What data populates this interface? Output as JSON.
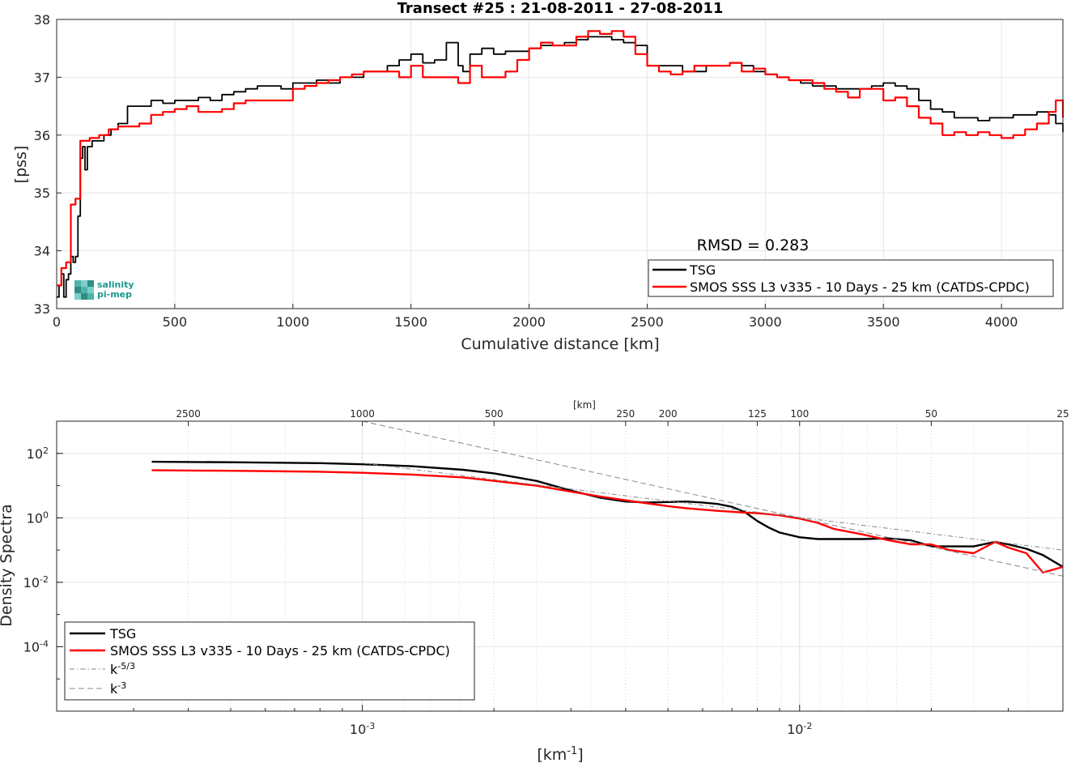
{
  "chart_data": [
    {
      "type": "line",
      "title": "Transect #25 : 21-08-2011 - 27-08-2011",
      "xlabel": "Cumulative distance [km]",
      "ylabel": "[pss]",
      "xlim": [
        0,
        4260
      ],
      "ylim": [
        33,
        38
      ],
      "xticks": [
        "0",
        "500",
        "1000",
        "1500",
        "2000",
        "2500",
        "3000",
        "3500",
        "4000"
      ],
      "yticks": [
        "33",
        "34",
        "35",
        "36",
        "37",
        "38"
      ],
      "grid": true,
      "annotation": "RMSD = 0.283",
      "legend_position": "bottom-right",
      "logo": "salinity pi-mep",
      "series": [
        {
          "name": "TSG",
          "color": "#000000",
          "x": [
            0,
            10,
            20,
            30,
            40,
            50,
            60,
            70,
            80,
            90,
            100,
            110,
            120,
            130,
            150,
            180,
            200,
            230,
            260,
            300,
            350,
            400,
            450,
            500,
            550,
            600,
            650,
            700,
            750,
            800,
            850,
            900,
            950,
            1000,
            1050,
            1100,
            1150,
            1200,
            1250,
            1300,
            1350,
            1400,
            1450,
            1500,
            1550,
            1600,
            1650,
            1700,
            1720,
            1750,
            1800,
            1850,
            1900,
            1950,
            2000,
            2050,
            2100,
            2150,
            2200,
            2250,
            2300,
            2350,
            2400,
            2450,
            2500,
            2550,
            2600,
            2650,
            2700,
            2750,
            2800,
            2850,
            2900,
            2950,
            3000,
            3050,
            3100,
            3150,
            3200,
            3250,
            3300,
            3350,
            3400,
            3450,
            3500,
            3550,
            3600,
            3650,
            3700,
            3750,
            3800,
            3850,
            3900,
            3950,
            4000,
            4050,
            4100,
            4150,
            4200,
            4230,
            4260
          ],
          "y": [
            33.2,
            33.4,
            33.6,
            33.2,
            33.5,
            33.6,
            33.9,
            33.8,
            33.9,
            34.6,
            35.6,
            35.8,
            35.4,
            35.8,
            35.9,
            35.9,
            36.0,
            36.1,
            36.2,
            36.5,
            36.5,
            36.6,
            36.55,
            36.6,
            36.6,
            36.65,
            36.6,
            36.7,
            36.75,
            36.8,
            36.85,
            36.85,
            36.8,
            36.9,
            36.9,
            36.95,
            36.9,
            37.0,
            37.0,
            37.1,
            37.1,
            37.2,
            37.3,
            37.4,
            37.25,
            37.3,
            37.6,
            37.2,
            37.1,
            37.4,
            37.5,
            37.4,
            37.45,
            37.45,
            37.5,
            37.55,
            37.55,
            37.6,
            37.65,
            37.7,
            37.7,
            37.65,
            37.6,
            37.55,
            37.2,
            37.2,
            37.2,
            37.1,
            37.1,
            37.2,
            37.2,
            37.25,
            37.2,
            37.1,
            37.05,
            37.0,
            36.95,
            36.9,
            36.85,
            36.85,
            36.8,
            36.8,
            36.8,
            36.85,
            36.9,
            36.85,
            36.8,
            36.6,
            36.45,
            36.4,
            36.3,
            36.3,
            36.25,
            36.3,
            36.3,
            36.35,
            36.35,
            36.4,
            36.35,
            36.2,
            36.05
          ]
        },
        {
          "name": "SMOS SSS L3 v335 - 10 Days - 25 km (CATDS-CPDC)",
          "color": "#ff0000",
          "x": [
            0,
            20,
            40,
            60,
            80,
            100,
            120,
            140,
            180,
            220,
            260,
            300,
            350,
            400,
            450,
            500,
            550,
            600,
            650,
            700,
            750,
            800,
            850,
            900,
            950,
            1000,
            1050,
            1100,
            1150,
            1200,
            1250,
            1300,
            1350,
            1400,
            1450,
            1500,
            1550,
            1600,
            1650,
            1700,
            1750,
            1800,
            1850,
            1900,
            1950,
            2000,
            2050,
            2100,
            2150,
            2200,
            2250,
            2300,
            2350,
            2400,
            2450,
            2500,
            2550,
            2600,
            2650,
            2700,
            2750,
            2800,
            2850,
            2900,
            2950,
            3000,
            3050,
            3100,
            3150,
            3200,
            3250,
            3300,
            3350,
            3400,
            3450,
            3500,
            3550,
            3600,
            3650,
            3700,
            3750,
            3800,
            3850,
            3900,
            3950,
            4000,
            4050,
            4100,
            4150,
            4200,
            4230,
            4260
          ],
          "y": [
            33.4,
            33.7,
            33.8,
            34.8,
            34.9,
            35.9,
            35.9,
            35.95,
            36.0,
            36.1,
            36.15,
            36.15,
            36.2,
            36.35,
            36.4,
            36.45,
            36.5,
            36.4,
            36.4,
            36.45,
            36.55,
            36.6,
            36.6,
            36.6,
            36.6,
            36.8,
            36.85,
            36.9,
            36.95,
            37.0,
            37.05,
            37.1,
            37.1,
            37.1,
            37.0,
            37.2,
            37.0,
            37.0,
            37.0,
            36.9,
            37.2,
            37.0,
            37.0,
            37.1,
            37.3,
            37.5,
            37.6,
            37.55,
            37.55,
            37.7,
            37.8,
            37.75,
            37.8,
            37.7,
            37.4,
            37.2,
            37.1,
            37.05,
            37.1,
            37.2,
            37.2,
            37.2,
            37.25,
            37.1,
            37.15,
            37.05,
            37.0,
            36.95,
            36.95,
            36.9,
            36.8,
            36.75,
            36.65,
            36.8,
            36.8,
            36.6,
            36.65,
            36.5,
            36.3,
            36.2,
            36.0,
            36.05,
            36.0,
            36.05,
            36.0,
            35.95,
            36.0,
            36.1,
            36.2,
            36.4,
            36.6,
            36.3
          ]
        }
      ]
    },
    {
      "type": "line",
      "title": "",
      "xlabel": "[km-1]",
      "xlabel_main": "[km",
      "xlabel_sup": "-1",
      "xlabel_end": "]",
      "ylabel": "Density Spectra",
      "xscale": "log",
      "yscale": "log",
      "xlim": [
        0.0002,
        0.04
      ],
      "ylim": [
        1e-06,
        1000
      ],
      "x_major_ticks": [
        {
          "base": "10",
          "exp": "-3",
          "value": 0.001
        },
        {
          "base": "10",
          "exp": "-2",
          "value": 0.01
        }
      ],
      "y_major_ticks": [
        {
          "base": "10",
          "exp": "2",
          "value": 100
        },
        {
          "base": "10",
          "exp": "0",
          "value": 1
        },
        {
          "base": "10",
          "exp": "-2",
          "value": 0.01
        },
        {
          "base": "10",
          "exp": "-4",
          "value": 0.0001
        }
      ],
      "top_axis_label": "[km]",
      "top_axis_ticks": [
        "2500",
        "1000",
        "500",
        "250",
        "200",
        "125",
        "100",
        "50",
        "25"
      ],
      "top_axis_values_km": [
        2500,
        1000,
        500,
        250,
        200,
        125,
        100,
        50,
        25
      ],
      "grid": true,
      "legend_position": "bottom-left",
      "series": [
        {
          "name": "TSG",
          "color": "#000000",
          "x": [
            0.00033,
            0.0005,
            0.0008,
            0.001,
            0.0013,
            0.0017,
            0.002,
            0.0025,
            0.003,
            0.0035,
            0.004,
            0.0045,
            0.005,
            0.0055,
            0.006,
            0.0065,
            0.007,
            0.0075,
            0.008,
            0.0085,
            0.009,
            0.01,
            0.011,
            0.012,
            0.014,
            0.016,
            0.018,
            0.02,
            0.022,
            0.025,
            0.028,
            0.03,
            0.033,
            0.036,
            0.04
          ],
          "y": [
            55,
            53,
            50,
            46,
            40,
            31,
            24,
            14,
            7,
            4.2,
            3.2,
            3.0,
            3.1,
            3.2,
            3.0,
            2.7,
            2.2,
            1.5,
            0.8,
            0.5,
            0.35,
            0.25,
            0.22,
            0.22,
            0.22,
            0.23,
            0.2,
            0.13,
            0.13,
            0.13,
            0.18,
            0.15,
            0.11,
            0.07,
            0.03
          ]
        },
        {
          "name": "SMOS SSS L3 v335 - 10 Days - 25 km (CATDS-CPDC)",
          "color": "#ff0000",
          "x": [
            0.00033,
            0.0005,
            0.0008,
            0.001,
            0.0013,
            0.0017,
            0.002,
            0.0025,
            0.003,
            0.0035,
            0.004,
            0.0045,
            0.005,
            0.0055,
            0.006,
            0.0065,
            0.007,
            0.0075,
            0.008,
            0.0085,
            0.009,
            0.01,
            0.011,
            0.012,
            0.014,
            0.016,
            0.018,
            0.02,
            0.022,
            0.025,
            0.028,
            0.03,
            0.033,
            0.036,
            0.04
          ],
          "y": [
            30,
            29,
            27,
            25,
            22,
            18,
            14,
            10,
            6.5,
            4.6,
            3.5,
            2.8,
            2.3,
            2.0,
            1.8,
            1.65,
            1.55,
            1.45,
            1.4,
            1.3,
            1.2,
            0.95,
            0.7,
            0.45,
            0.3,
            0.2,
            0.15,
            0.15,
            0.1,
            0.08,
            0.18,
            0.12,
            0.08,
            0.02,
            0.03
          ]
        },
        {
          "name": "k-5/3",
          "name_main": "k",
          "name_sup": "-5/3",
          "color": "#888888",
          "dash": "dashdot",
          "x": [
            0.001,
            0.04
          ],
          "y": [
            50,
            0.1
          ]
        },
        {
          "name": "k-3",
          "name_main": "k",
          "name_sup": "-3",
          "color": "#888888",
          "dash": "dash",
          "x": [
            0.001,
            0.04
          ],
          "y": [
            1000,
            0.0156
          ]
        }
      ]
    }
  ]
}
